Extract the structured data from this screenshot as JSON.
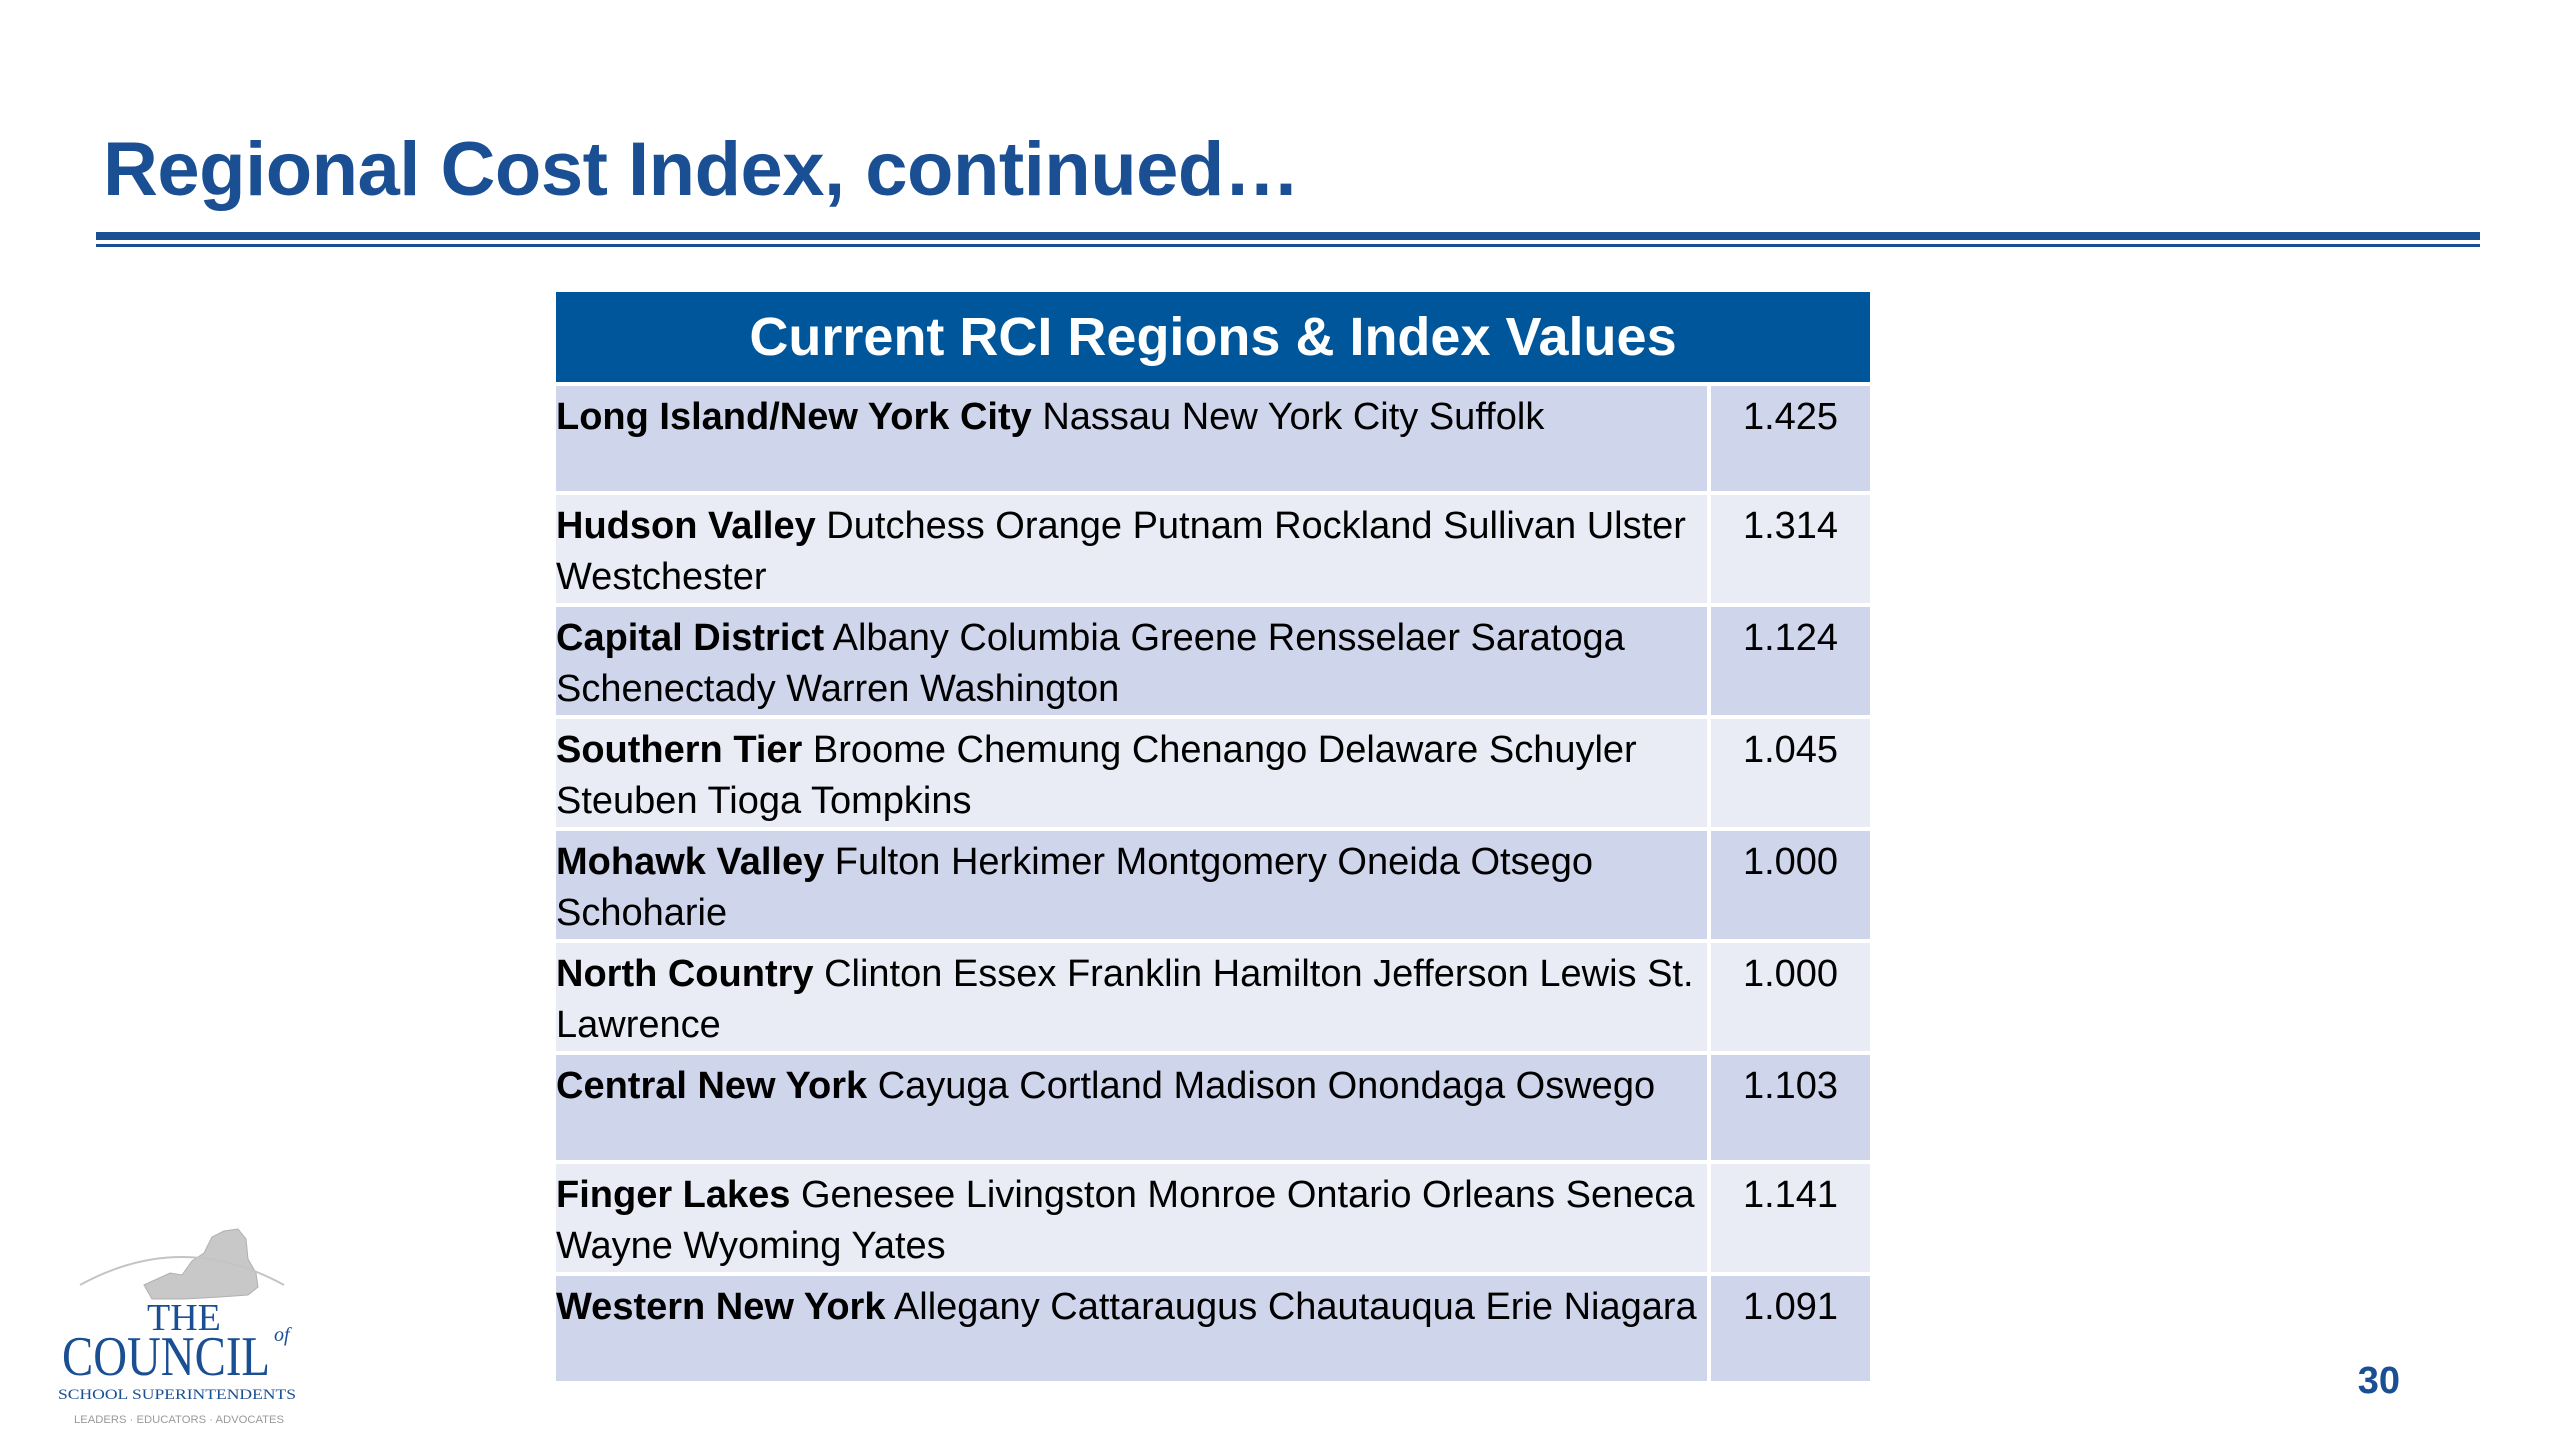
{
  "slide": {
    "title": "Regional Cost Index, continued…",
    "page_number": "30"
  },
  "table": {
    "header": "Current RCI Regions & Index Values",
    "rows": [
      {
        "region": "Long Island/New York City",
        "counties": " Nassau New York City Suffolk",
        "value": "1.425"
      },
      {
        "region": "Hudson Valley",
        "counties": " Dutchess Orange Putnam Rockland Sullivan Ulster Westchester",
        "value": "1.314"
      },
      {
        "region": "Capital District",
        "counties": " Albany Columbia Greene Rensselaer Saratoga Schenectady Warren Washington",
        "value": "1.124"
      },
      {
        "region": "Southern Tier",
        "counties": " Broome Chemung Chenango Delaware Schuyler Steuben Tioga Tompkins",
        "value": "1.045"
      },
      {
        "region": "Mohawk Valley",
        "counties": " Fulton Herkimer Montgomery Oneida Otsego Schoharie",
        "value": "1.000"
      },
      {
        "region": "North Country",
        "counties": " Clinton Essex Franklin Hamilton Jefferson Lewis St. Lawrence",
        "value": "1.000"
      },
      {
        "region": "Central New York",
        "counties": " Cayuga Cortland Madison Onondaga Oswego",
        "value": "1.103"
      },
      {
        "region": "Finger Lakes",
        "counties": " Genesee Livingston Monroe Ontario Orleans Seneca Wayne Wyoming Yates",
        "value": "1.141"
      },
      {
        "region": "Western New York",
        "counties": " Allegany Cattaraugus Chautauqua Erie Niagara",
        "value": "1.091"
      }
    ]
  },
  "logo": {
    "line1": "THE",
    "line2": "COUNCIL",
    "line2_suffix": "of",
    "line3": "SCHOOL SUPERINTENDENTS",
    "line4": "LEADERS · EDUCATORS · ADVOCATES"
  },
  "colors": {
    "title": "#1a4f94",
    "header_bg": "#00569a",
    "row_odd": "#cfd5ea",
    "row_even": "#e9ebf5"
  }
}
